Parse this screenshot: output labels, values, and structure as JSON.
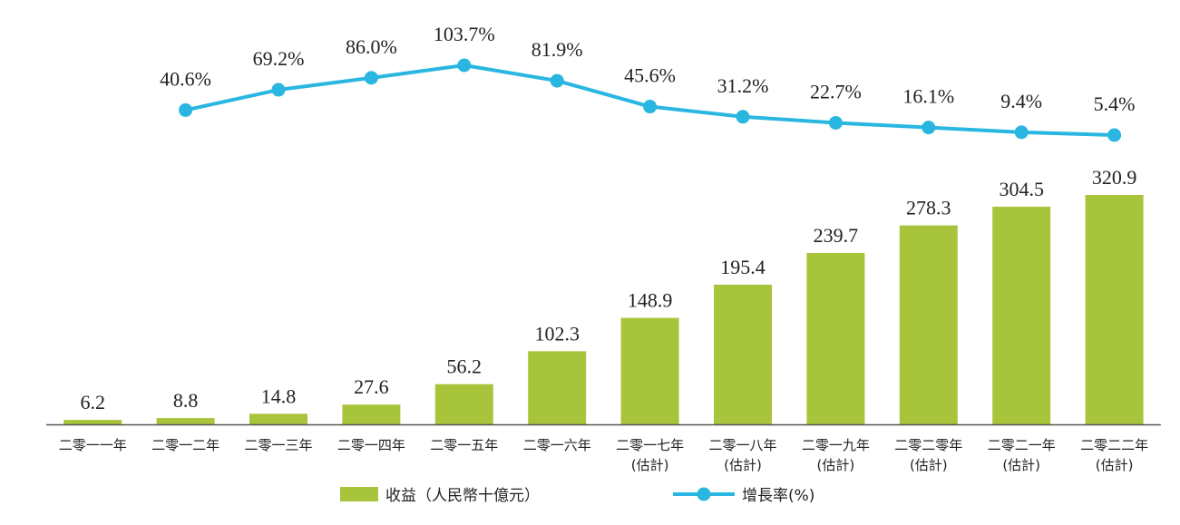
{
  "chart_data": {
    "type": "bar",
    "categories": [
      [
        "二零一一年"
      ],
      [
        "二零一二年"
      ],
      [
        "二零一三年"
      ],
      [
        "二零一四年"
      ],
      [
        "二零一五年"
      ],
      [
        "二零一六年"
      ],
      [
        "二零一七年",
        "(估計)"
      ],
      [
        "二零一八年",
        "(估計)"
      ],
      [
        "二零一九年",
        "(估計)"
      ],
      [
        "二零二零年",
        "(估計)"
      ],
      [
        "二零二一年",
        "(估計)"
      ],
      [
        "二零二二年",
        "(估計)"
      ]
    ],
    "series": [
      {
        "name": "收益（人民幣十億元）",
        "type": "bar",
        "color": "#a8c43a",
        "values": [
          6.2,
          8.8,
          14.8,
          27.6,
          56.2,
          102.3,
          148.9,
          195.4,
          239.7,
          278.3,
          304.5,
          320.9
        ],
        "labels": [
          "6.2",
          "8.8",
          "14.8",
          "27.6",
          "56.2",
          "102.3",
          "148.9",
          "195.4",
          "239.7",
          "278.3",
          "304.5",
          "320.9"
        ]
      },
      {
        "name": "增長率(%)",
        "type": "line",
        "color": "#29b6e0",
        "values": [
          null,
          40.6,
          69.2,
          86.0,
          103.7,
          81.9,
          45.6,
          31.2,
          22.7,
          16.1,
          9.4,
          5.4
        ],
        "labels": [
          "",
          "40.6%",
          "69.2%",
          "86.0%",
          "103.7%",
          "81.9%",
          "45.6%",
          "31.2%",
          "22.7%",
          "16.1%",
          "9.4%",
          "5.4%"
        ]
      }
    ],
    "axis_color": "#555555",
    "legend_position": "bottom",
    "grid": false
  }
}
